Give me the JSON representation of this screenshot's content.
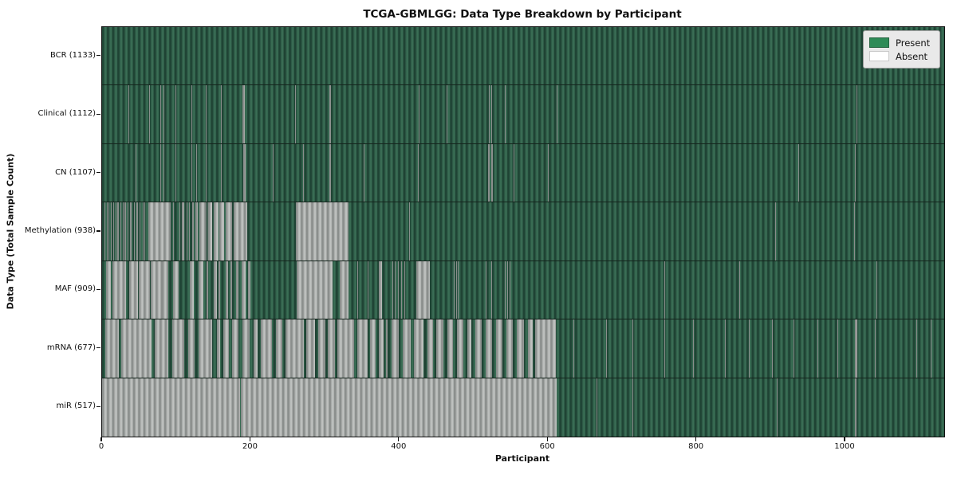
{
  "title": "TCGA-GBMLGG: Data Type Breakdown by Participant",
  "axes": {
    "xlabel": "Participant",
    "ylabel": "Data Type (Total Sample Count)"
  },
  "legend": {
    "present_label": "Present",
    "absent_label": "Absent"
  },
  "colors": {
    "present": "#2e8b57",
    "absent": "#ffffff",
    "present_rendered": "#2d5a46",
    "absent_rendered": "#a8aba9",
    "legend_bg": "#e9e9e9",
    "spine": "#111111"
  },
  "chart_data": {
    "type": "heatmap",
    "title": "TCGA-GBMLGG: Data Type Breakdown by Participant",
    "xlabel": "Participant",
    "ylabel": "Data Type (Total Sample Count)",
    "x_range": [
      0,
      1133
    ],
    "x_ticks": [
      0,
      200,
      400,
      600,
      800,
      1000
    ],
    "x_tick_labels": [
      "0",
      "200",
      "400",
      "600",
      "800",
      "1000"
    ],
    "grid": false,
    "legend_position": "upper right",
    "legend_entries": [
      "Present",
      "Absent"
    ],
    "cell_encoding": "green = data type present for participant, white/gray = absent; participants sorted left to right",
    "rows": [
      {
        "name": "BCR",
        "label": "BCR (1133)",
        "present_count": 1133,
        "absent_runs": []
      },
      {
        "name": "Clinical",
        "label": "Clinical (1112)",
        "present_count": 1112,
        "absent_runs": [
          [
            35,
            36
          ],
          [
            63,
            64
          ],
          [
            78,
            79
          ],
          [
            83,
            84
          ],
          [
            99,
            100
          ],
          [
            120,
            121
          ],
          [
            140,
            141
          ],
          [
            160,
            161
          ],
          [
            189,
            192
          ],
          [
            260,
            261
          ],
          [
            306,
            308
          ],
          [
            426,
            427
          ],
          [
            464,
            465
          ],
          [
            520,
            521
          ],
          [
            524,
            525
          ],
          [
            542,
            543
          ],
          [
            612,
            613
          ],
          [
            1015,
            1016
          ]
        ]
      },
      {
        "name": "CN",
        "label": "CN (1107)",
        "present_count": 1107,
        "absent_runs": [
          [
            45,
            46
          ],
          [
            78,
            79
          ],
          [
            83,
            84
          ],
          [
            99,
            100
          ],
          [
            120,
            121
          ],
          [
            127,
            128
          ],
          [
            140,
            141
          ],
          [
            160,
            161
          ],
          [
            190,
            193
          ],
          [
            230,
            231
          ],
          [
            270,
            271
          ],
          [
            306,
            308
          ],
          [
            352,
            353
          ],
          [
            425,
            426
          ],
          [
            519,
            521
          ],
          [
            524,
            526
          ],
          [
            554,
            555
          ],
          [
            600,
            601
          ],
          [
            860,
            861
          ],
          [
            937,
            938
          ],
          [
            1013,
            1014
          ]
        ]
      },
      {
        "name": "Methylation",
        "label": "Methylation (938)",
        "present_count": 938,
        "absent_runs": [
          [
            3,
            4
          ],
          [
            6,
            7
          ],
          [
            9,
            10
          ],
          [
            12,
            13
          ],
          [
            15,
            16
          ],
          [
            18,
            19
          ],
          [
            20,
            22
          ],
          [
            25,
            26
          ],
          [
            28,
            29
          ],
          [
            30,
            32
          ],
          [
            34,
            35
          ],
          [
            36,
            37
          ],
          [
            38,
            40
          ],
          [
            43,
            44
          ],
          [
            46,
            48
          ],
          [
            50,
            52
          ],
          [
            55,
            56
          ],
          [
            57,
            58
          ],
          [
            62,
            92
          ],
          [
            96,
            97
          ],
          [
            104,
            105
          ],
          [
            107,
            111
          ],
          [
            114,
            115
          ],
          [
            117,
            118
          ],
          [
            121,
            123
          ],
          [
            125,
            129
          ],
          [
            131,
            139
          ],
          [
            141,
            142
          ],
          [
            143,
            148
          ],
          [
            150,
            157
          ],
          [
            158,
            164
          ],
          [
            166,
            175
          ],
          [
            177,
            195
          ],
          [
            261,
            332
          ],
          [
            413,
            414
          ],
          [
            906,
            907
          ],
          [
            1012,
            1013
          ]
        ]
      },
      {
        "name": "MAF",
        "label": "MAF (909)",
        "present_count": 909,
        "absent_runs": [
          [
            5,
            12
          ],
          [
            14,
            32
          ],
          [
            36,
            48
          ],
          [
            49,
            64
          ],
          [
            65,
            80
          ],
          [
            81,
            89
          ],
          [
            95,
            103
          ],
          [
            118,
            123
          ],
          [
            130,
            136
          ],
          [
            141,
            143
          ],
          [
            150,
            154
          ],
          [
            157,
            159
          ],
          [
            166,
            170
          ],
          [
            173,
            175
          ],
          [
            180,
            184
          ],
          [
            188,
            193
          ],
          [
            196,
            200
          ],
          [
            262,
            310
          ],
          [
            320,
            332
          ],
          [
            343,
            344
          ],
          [
            357,
            358
          ],
          [
            372,
            377
          ],
          [
            389,
            390
          ],
          [
            391,
            392
          ],
          [
            394,
            395
          ],
          [
            398,
            399
          ],
          [
            402,
            403
          ],
          [
            407,
            408
          ],
          [
            423,
            441
          ],
          [
            473,
            474
          ],
          [
            476,
            477
          ],
          [
            479,
            480
          ],
          [
            516,
            517
          ],
          [
            524,
            525
          ],
          [
            542,
            543
          ],
          [
            545,
            546
          ],
          [
            548,
            549
          ],
          [
            551,
            552
          ],
          [
            756,
            757
          ],
          [
            857,
            858
          ],
          [
            1042,
            1043
          ]
        ]
      },
      {
        "name": "mRNA",
        "label": "mRNA (677)",
        "present_count": 677,
        "absent_runs": [
          [
            4,
            23
          ],
          [
            26,
            66
          ],
          [
            71,
            89
          ],
          [
            94,
            111
          ],
          [
            116,
            125
          ],
          [
            130,
            148
          ],
          [
            154,
            159
          ],
          [
            163,
            171
          ],
          [
            175,
            184
          ],
          [
            189,
            198
          ],
          [
            204,
            209
          ],
          [
            213,
            229
          ],
          [
            234,
            243
          ],
          [
            247,
            271
          ],
          [
            275,
            286
          ],
          [
            291,
            300
          ],
          [
            304,
            313
          ],
          [
            316,
            339
          ],
          [
            343,
            357
          ],
          [
            361,
            368
          ],
          [
            372,
            379
          ],
          [
            382,
            384
          ],
          [
            390,
            399
          ],
          [
            404,
            415
          ],
          [
            420,
            432
          ],
          [
            438,
            445
          ],
          [
            450,
            459
          ],
          [
            465,
            472
          ],
          [
            477,
            486
          ],
          [
            491,
            497
          ],
          [
            502,
            511
          ],
          [
            516,
            525
          ],
          [
            530,
            539
          ],
          [
            544,
            553
          ],
          [
            558,
            568
          ],
          [
            573,
            579
          ],
          [
            583,
            611
          ],
          [
            625,
            626
          ],
          [
            634,
            635
          ],
          [
            678,
            679
          ],
          [
            714,
            715
          ],
          [
            756,
            757
          ],
          [
            795,
            796
          ],
          [
            838,
            839
          ],
          [
            870,
            871
          ],
          [
            901,
            902
          ],
          [
            930,
            931
          ],
          [
            962,
            963
          ],
          [
            989,
            990
          ],
          [
            1013,
            1016
          ],
          [
            1040,
            1041
          ],
          [
            1095,
            1096
          ],
          [
            1115,
            1116
          ]
        ]
      },
      {
        "name": "miR",
        "label": "miR (517)",
        "present_count": 517,
        "absent_runs": [
          [
            0,
            186
          ],
          [
            187,
            612
          ],
          [
            665,
            666
          ],
          [
            714,
            715
          ],
          [
            908,
            909
          ],
          [
            1013,
            1015
          ]
        ]
      }
    ]
  }
}
